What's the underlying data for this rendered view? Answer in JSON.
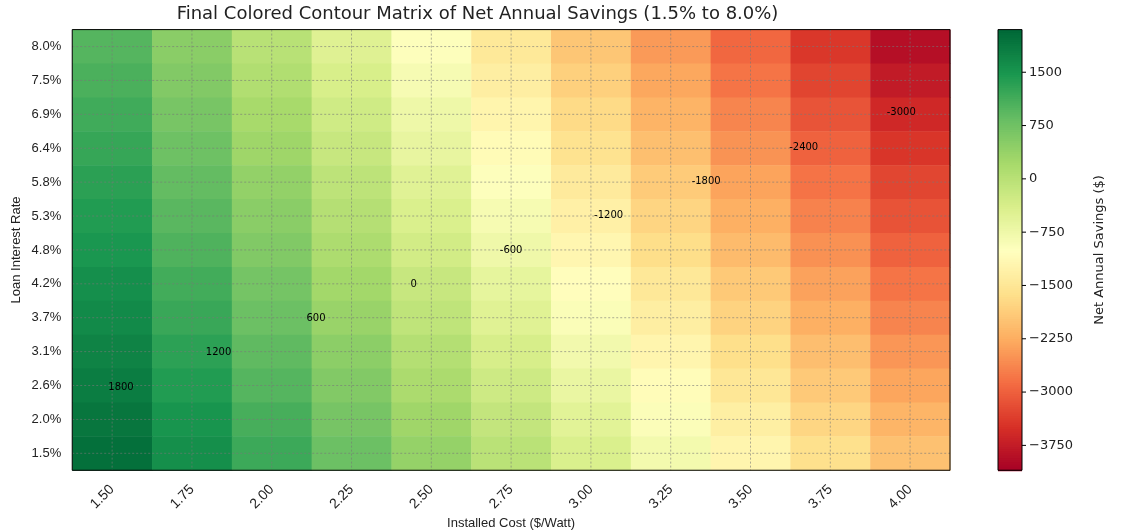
{
  "chart_data": {
    "type": "heatmap",
    "title": "Final Colored Contour Matrix of Net Annual Savings (1.5% to 8.0%)",
    "xlabel": "Installed Cost ($/Watt)",
    "ylabel": "Loan Interest Rate",
    "clabel": "Net Annual Savings ($)",
    "categories": [
      "1.50",
      "1.75",
      "2.00",
      "2.25",
      "2.50",
      "2.75",
      "3.00",
      "3.25",
      "3.50",
      "3.75",
      "4.00"
    ],
    "y_categories": [
      "8.0%",
      "7.5%",
      "6.9%",
      "6.4%",
      "5.8%",
      "5.3%",
      "4.8%",
      "4.2%",
      "3.7%",
      "3.1%",
      "2.6%",
      "2.0%",
      "1.5%"
    ],
    "cells": [
      [
        1000,
        510,
        20,
        -470,
        -960,
        -1450,
        -1940,
        -2430,
        -2920,
        -3410,
        -3900
      ],
      [
        1080,
        590,
        110,
        -370,
        -860,
        -1340,
        -1820,
        -2300,
        -2790,
        -3270,
        -3750
      ],
      [
        1170,
        690,
        220,
        -260,
        -730,
        -1210,
        -1680,
        -2160,
        -2630,
        -3110,
        -3580
      ],
      [
        1250,
        780,
        310,
        -160,
        -630,
        -1090,
        -1560,
        -2030,
        -2500,
        -2970,
        -3430
      ],
      [
        1340,
        880,
        420,
        -40,
        -500,
        -960,
        -1420,
        -1880,
        -2340,
        -2800,
        -3260
      ],
      [
        1420,
        960,
        510,
        60,
        -400,
        -850,
        -1300,
        -1760,
        -2210,
        -2660,
        -3120
      ],
      [
        1490,
        1050,
        600,
        150,
        -290,
        -740,
        -1180,
        -1630,
        -2080,
        -2520,
        -2970
      ],
      [
        1590,
        1150,
        710,
        270,
        -160,
        -600,
        -1040,
        -1470,
        -1910,
        -2350,
        -2790
      ],
      [
        1660,
        1230,
        800,
        370,
        -60,
        -490,
        -920,
        -1350,
        -1780,
        -2210,
        -2640
      ],
      [
        1750,
        1330,
        910,
        490,
        70,
        -360,
        -780,
        -1200,
        -1620,
        -2040,
        -2470
      ],
      [
        1830,
        1420,
        1000,
        590,
        170,
        -240,
        -660,
        -1070,
        -1490,
        -1900,
        -2320
      ],
      [
        1920,
        1520,
        1110,
        700,
        300,
        -110,
        -520,
        -930,
        -1330,
        -1740,
        -2150
      ],
      [
        2000,
        1600,
        1200,
        800,
        400,
        0,
        -400,
        -800,
        -1200,
        -1600,
        -2000
      ]
    ],
    "clim": [
      -4100,
      2100
    ],
    "cticks": [
      -3750,
      -3000,
      -2250,
      -1500,
      -750,
      0,
      750,
      1500
    ],
    "grid": true,
    "annotations": [
      "1800",
      "1200",
      "600",
      "0",
      "-600",
      "-1200",
      "-1800",
      "-2400",
      "-3000"
    ]
  }
}
